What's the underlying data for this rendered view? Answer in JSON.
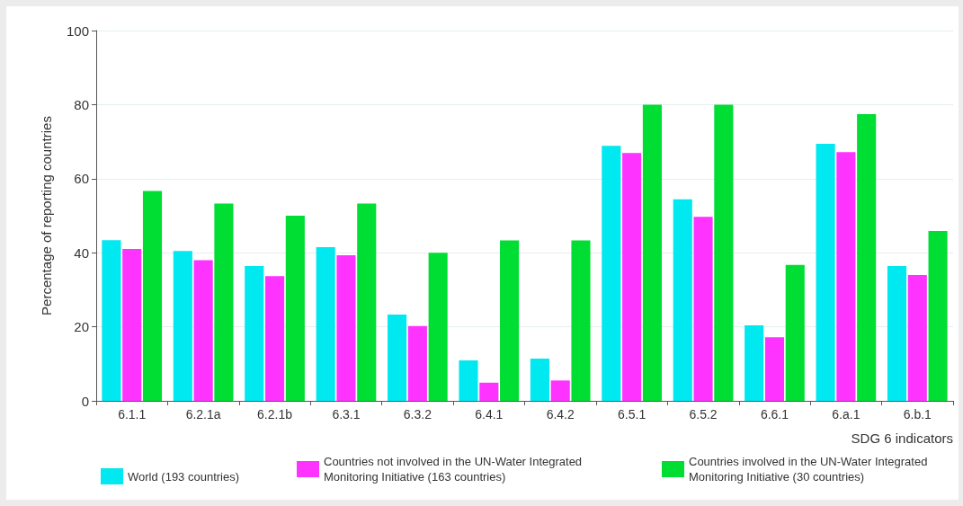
{
  "chart_data": {
    "type": "bar",
    "xlabel": "SDG 6 indicators",
    "ylabel": "Percentage of reporting countries",
    "categories": [
      "6.1.1",
      "6.2.1a",
      "6.2.1b",
      "6.3.1",
      "6.3.2",
      "6.4.1",
      "6.4.2",
      "6.5.1",
      "6.5.2",
      "6.6.1",
      "6.a.1",
      "6.b.1"
    ],
    "series": [
      {
        "name": "World (193 countries)",
        "color": "#00e8f0",
        "values": [
          43.4,
          40.5,
          36.4,
          41.5,
          23.3,
          10.9,
          11.4,
          68.9,
          54.4,
          20.4,
          69.4,
          36.4
        ]
      },
      {
        "name": "Countries not involved in the UN-Water Integrated Monitoring Initiative (163 countries)",
        "color": "#ff33ff",
        "values": [
          41.0,
          38.0,
          33.7,
          39.3,
          20.2,
          4.9,
          5.5,
          66.9,
          49.7,
          17.2,
          67.2,
          34.0
        ]
      },
      {
        "name": "Countries involved in the UN-Water Integrated Monitoring Initiative (30 countries)",
        "color": "#00dd33",
        "values": [
          56.7,
          53.3,
          50.0,
          53.3,
          40.0,
          43.3,
          43.3,
          80.0,
          80.0,
          36.7,
          77.4,
          45.9
        ]
      }
    ],
    "ylim": [
      0,
      100
    ],
    "yticks": [
      0,
      20,
      40,
      60,
      80,
      100
    ],
    "grid": "y",
    "legend": "bottom"
  }
}
